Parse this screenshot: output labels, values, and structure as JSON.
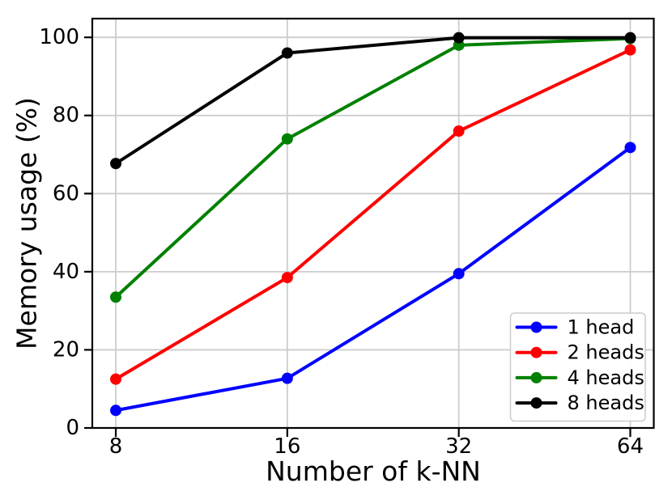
{
  "chart_data": {
    "type": "line",
    "title": "",
    "xlabel": "Number of k-NN",
    "ylabel": "Memory usage (%)",
    "categories": [
      "8",
      "16",
      "32",
      "64"
    ],
    "series": [
      {
        "name": "1 head",
        "color": "#0000ff",
        "values": [
          4.5,
          12.7,
          39.5,
          71.8
        ]
      },
      {
        "name": "2 heads",
        "color": "#ff0000",
        "values": [
          12.5,
          38.5,
          76.0,
          96.8
        ]
      },
      {
        "name": "4 heads",
        "color": "#008000",
        "values": [
          33.5,
          74.0,
          98.0,
          99.7
        ]
      },
      {
        "name": "8 heads",
        "color": "#000000",
        "values": [
          67.7,
          96.0,
          99.9,
          99.9
        ]
      }
    ],
    "yticks": [
      0,
      20,
      40,
      60,
      80,
      100
    ],
    "ylim": [
      0,
      104.8
    ],
    "x_margin": 0.137,
    "x_scale": "equal-spacing-powers-of-2",
    "grid": true,
    "legend": {
      "visible": true,
      "position": "lower right"
    },
    "marker": "circle",
    "axis_color": "#000000",
    "grid_color": "#cccccc",
    "legend_border_color": "#cccccc",
    "legend_background": "#ffffff",
    "text_color": "#000000"
  }
}
